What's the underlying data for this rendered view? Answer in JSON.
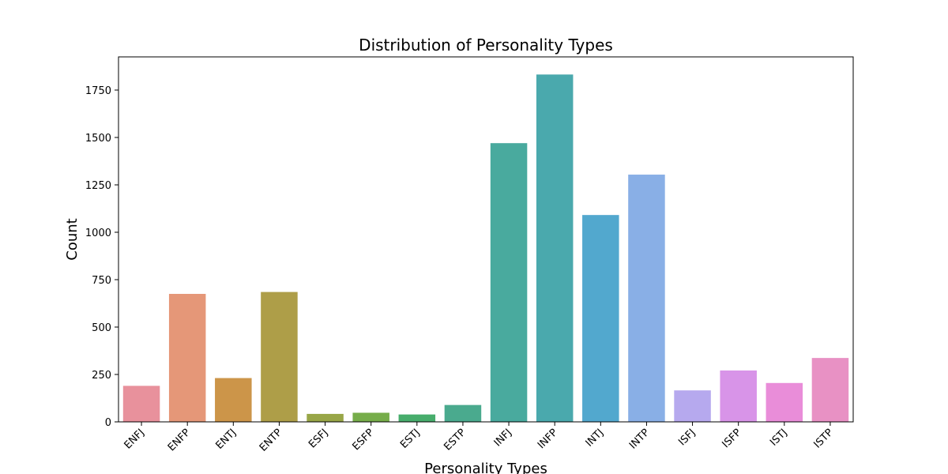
{
  "chart_data": {
    "type": "bar",
    "title": "Distribution of Personality Types",
    "xlabel": "Personality Types",
    "ylabel": "Count",
    "ylim": [
      0,
      1925
    ],
    "yticks": [
      0,
      250,
      500,
      750,
      1000,
      1250,
      1500,
      1750
    ],
    "grid": false,
    "legend": null,
    "categories": [
      "ENFJ",
      "ENFP",
      "ENTJ",
      "ENTP",
      "ESFJ",
      "ESFP",
      "ESTJ",
      "ESTP",
      "INFJ",
      "INFP",
      "INTJ",
      "INTP",
      "ISFJ",
      "ISFP",
      "ISTJ",
      "ISTP"
    ],
    "values": [
      190,
      675,
      231,
      685,
      42,
      48,
      39,
      89,
      1470,
      1832,
      1091,
      1304,
      166,
      271,
      205,
      337
    ],
    "colors": [
      "#e8919c",
      "#e59778",
      "#cc9549",
      "#ae9e48",
      "#98a647",
      "#76ad4a",
      "#47ad6c",
      "#4aaa8e",
      "#49aa9e",
      "#4aa9ad",
      "#52a8ce",
      "#89afe6",
      "#b6a9ee",
      "#d894e8",
      "#e98dd9",
      "#e891c4"
    ]
  }
}
